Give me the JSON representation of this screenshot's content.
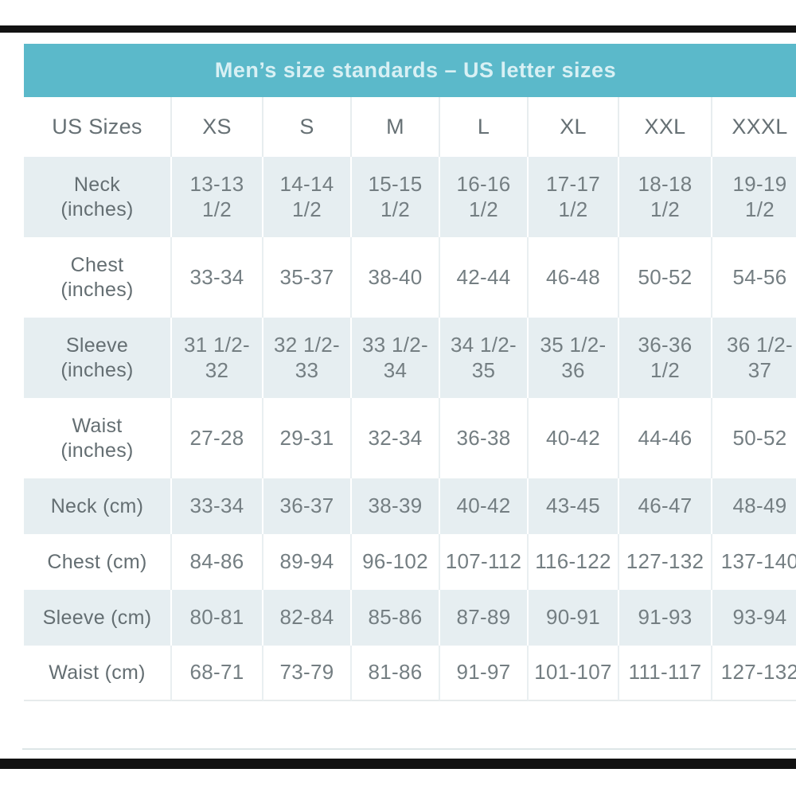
{
  "page": {
    "title": "Men’s size standards – US letter sizes"
  },
  "colors": {
    "header_bg": "#5bb9ca",
    "header_text": "#d8f0f4",
    "row_tint": "#e6eef1",
    "body_text": "#747e82",
    "frame_bars": "#121212"
  },
  "table": {
    "columns": [
      "US Sizes",
      "XS",
      "S",
      "M",
      "L",
      "XL",
      "XXL",
      "XXXL"
    ],
    "rows": [
      {
        "label": "Neck\n(inches)",
        "values": [
          "13-13\n1/2",
          "14-14\n1/2",
          "15-15\n1/2",
          "16-16\n1/2",
          "17-17\n1/2",
          "18-18\n1/2",
          "19-19\n1/2"
        ]
      },
      {
        "label": "Chest\n(inches)",
        "values": [
          "33-34",
          "35-37",
          "38-40",
          "42-44",
          "46-48",
          "50-52",
          "54-56"
        ]
      },
      {
        "label": "Sleeve\n(inches)",
        "values": [
          "31 1/2-\n32",
          "32 1/2-\n33",
          "33 1/2-\n34",
          "34 1/2-\n35",
          "35 1/2-\n36",
          "36-36\n1/2",
          "36 1/2-\n37"
        ]
      },
      {
        "label": "Waist\n(inches)",
        "values": [
          "27-28",
          "29-31",
          "32-34",
          "36-38",
          "40-42",
          "44-46",
          "50-52"
        ]
      },
      {
        "label": "Neck (cm)",
        "values": [
          "33-34",
          "36-37",
          "38-39",
          "40-42",
          "43-45",
          "46-47",
          "48-49"
        ]
      },
      {
        "label": "Chest (cm)",
        "values": [
          "84-86",
          "89-94",
          "96-102",
          "107-112",
          "116-122",
          "127-132",
          "137-140"
        ]
      },
      {
        "label": "Sleeve (cm)",
        "values": [
          "80-81",
          "82-84",
          "85-86",
          "87-89",
          "90-91",
          "91-93",
          "93-94"
        ]
      },
      {
        "label": "Waist (cm)",
        "values": [
          "68-71",
          "73-79",
          "81-86",
          "91-97",
          "101-107",
          "111-117",
          "127-132"
        ]
      }
    ]
  }
}
